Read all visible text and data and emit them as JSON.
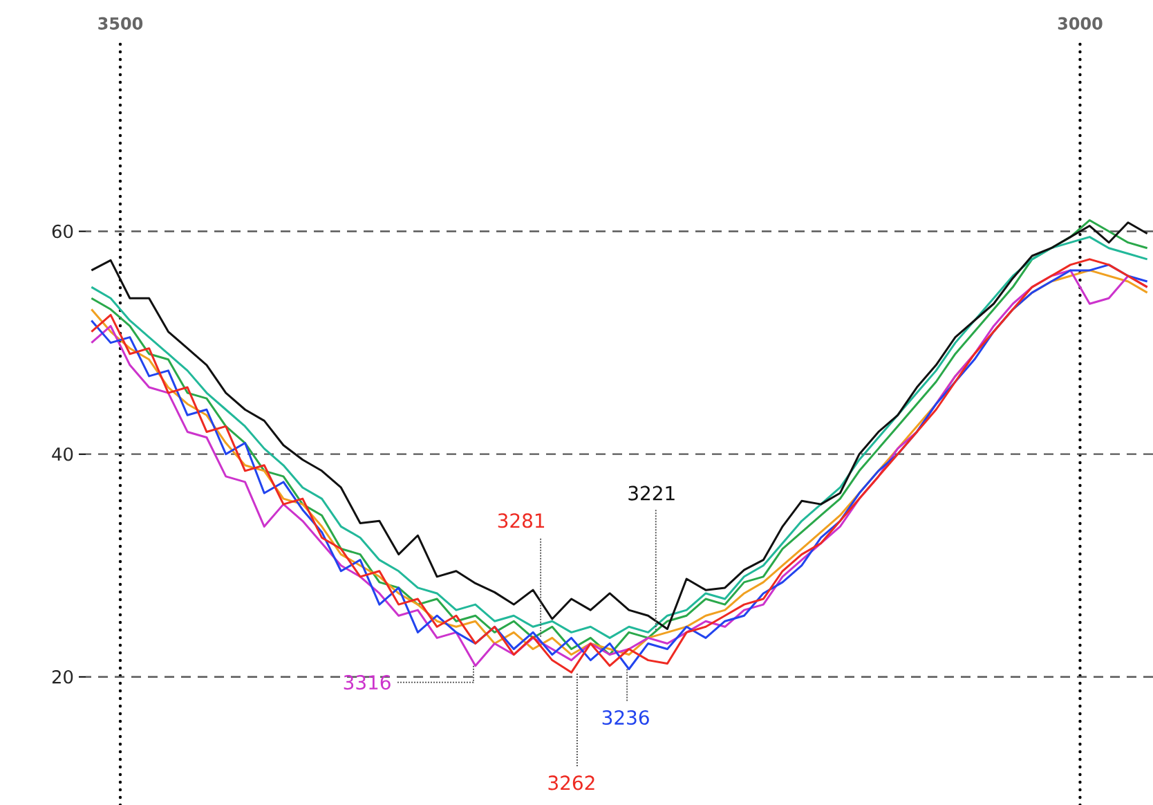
{
  "chart_data": {
    "type": "line",
    "x": [
      3515,
      3505,
      3495,
      3485,
      3475,
      3465,
      3455,
      3445,
      3435,
      3425,
      3415,
      3405,
      3395,
      3385,
      3375,
      3365,
      3355,
      3345,
      3335,
      3325,
      3315,
      3305,
      3295,
      3285,
      3275,
      3265,
      3255,
      3245,
      3235,
      3225,
      3215,
      3205,
      3195,
      3185,
      3175,
      3165,
      3155,
      3145,
      3135,
      3125,
      3115,
      3105,
      3095,
      3085,
      3075,
      3065,
      3055,
      3045,
      3035,
      3025,
      3015,
      3005,
      2995,
      2985,
      2975,
      2965
    ],
    "series": [
      {
        "color": "#2aa84a",
        "values": [
          54.0,
          53.0,
          51.5,
          49.0,
          48.5,
          45.5,
          45.0,
          42.5,
          41.0,
          38.5,
          38.0,
          35.5,
          34.5,
          31.5,
          31.0,
          28.5,
          28.0,
          26.5,
          27.0,
          25.0,
          25.5,
          24.0,
          25.0,
          23.5,
          24.5,
          22.5,
          23.5,
          22.0,
          24.0,
          23.5,
          25.0,
          25.5,
          27.0,
          26.5,
          28.5,
          29.0,
          31.5,
          33.0,
          34.5,
          36.0,
          38.5,
          40.5,
          42.5,
          44.5,
          46.5,
          49.0,
          51.0,
          53.0,
          55.0,
          57.5,
          58.5,
          59.5,
          61.0,
          60.0,
          59.0,
          58.5
        ]
      },
      {
        "color": "#22b89a",
        "values": [
          55.0,
          54.0,
          52.0,
          50.5,
          49.0,
          47.5,
          45.5,
          44.0,
          42.5,
          40.5,
          39.0,
          37.0,
          36.0,
          33.5,
          32.5,
          30.5,
          29.5,
          28.0,
          27.5,
          26.0,
          26.5,
          25.0,
          25.5,
          24.5,
          25.0,
          24.0,
          24.5,
          23.5,
          24.5,
          24.0,
          25.5,
          26.0,
          27.5,
          27.0,
          29.0,
          30.0,
          32.0,
          34.0,
          35.5,
          37.0,
          39.5,
          41.5,
          43.5,
          45.5,
          47.5,
          50.0,
          52.0,
          54.0,
          56.0,
          57.5,
          58.5,
          59.0,
          59.5,
          58.5,
          58.0,
          57.5
        ]
      },
      {
        "color": "#f0a020",
        "values": [
          53.0,
          51.0,
          49.5,
          48.5,
          46.0,
          44.5,
          43.5,
          41.0,
          39.0,
          38.5,
          36.0,
          35.5,
          33.5,
          31.0,
          30.0,
          29.0,
          27.5,
          26.5,
          25.0,
          24.5,
          25.0,
          23.0,
          24.0,
          22.5,
          23.5,
          22.0,
          23.0,
          22.5,
          22.0,
          23.5,
          24.0,
          24.5,
          25.5,
          26.0,
          27.5,
          28.5,
          30.0,
          31.5,
          33.0,
          34.5,
          36.5,
          38.5,
          40.5,
          42.5,
          44.5,
          47.0,
          49.0,
          51.0,
          53.0,
          54.5,
          55.5,
          56.0,
          56.5,
          56.0,
          55.5,
          54.5
        ]
      },
      {
        "color": "#cc33cc",
        "values": [
          50.0,
          51.5,
          48.0,
          46.0,
          45.5,
          42.0,
          41.5,
          38.0,
          37.5,
          33.5,
          35.5,
          34.0,
          32.0,
          30.0,
          29.0,
          27.5,
          25.5,
          26.0,
          23.5,
          24.0,
          21.0,
          23.0,
          22.0,
          23.5,
          22.5,
          21.5,
          23.0,
          22.0,
          22.5,
          23.5,
          23.0,
          24.0,
          25.0,
          24.5,
          26.0,
          26.5,
          29.0,
          30.5,
          32.0,
          33.5,
          36.0,
          38.0,
          40.5,
          42.0,
          44.5,
          47.0,
          49.0,
          51.5,
          53.5,
          55.0,
          56.0,
          56.5,
          53.5,
          54.0,
          56.0,
          55.0
        ]
      },
      {
        "color": "#2244ee",
        "values": [
          52.0,
          50.0,
          50.5,
          47.0,
          47.5,
          43.5,
          44.0,
          40.0,
          41.0,
          36.5,
          37.5,
          35.0,
          33.0,
          29.5,
          30.5,
          26.5,
          28.0,
          24.0,
          25.5,
          24.0,
          23.0,
          24.5,
          22.5,
          24.0,
          22.0,
          23.5,
          21.5,
          23.0,
          20.7,
          23.0,
          22.5,
          24.5,
          23.5,
          25.0,
          25.5,
          27.5,
          28.5,
          30.0,
          32.5,
          34.0,
          36.5,
          38.5,
          40.0,
          42.0,
          44.5,
          46.5,
          48.5,
          51.0,
          53.0,
          54.5,
          55.5,
          56.5,
          56.5,
          57.0,
          56.0,
          55.5
        ]
      },
      {
        "color": "#ee2a22",
        "values": [
          51.0,
          52.5,
          49.0,
          49.5,
          45.5,
          46.0,
          42.0,
          42.5,
          38.5,
          39.0,
          35.5,
          36.0,
          32.5,
          31.5,
          29.0,
          29.5,
          26.5,
          27.0,
          24.5,
          25.5,
          23.0,
          24.5,
          22.0,
          23.6,
          21.5,
          20.4,
          23.0,
          21.0,
          22.5,
          21.5,
          21.2,
          24.0,
          24.5,
          25.5,
          26.5,
          27.0,
          29.5,
          31.0,
          32.0,
          34.0,
          36.0,
          38.0,
          40.0,
          42.0,
          44.0,
          46.5,
          49.0,
          51.0,
          53.0,
          55.0,
          56.0,
          57.0,
          57.5,
          57.0,
          56.0,
          55.0
        ]
      },
      {
        "color": "#111111",
        "values": [
          56.5,
          57.4,
          54.0,
          54.0,
          51.0,
          49.5,
          48.0,
          45.5,
          44.0,
          43.0,
          40.8,
          39.5,
          38.5,
          37.0,
          33.8,
          34.0,
          31.0,
          32.7,
          29.0,
          29.5,
          28.4,
          27.6,
          26.5,
          27.8,
          25.2,
          27.0,
          26.0,
          27.5,
          26.0,
          25.5,
          24.3,
          28.8,
          27.8,
          28.0,
          29.6,
          30.5,
          33.5,
          35.8,
          35.5,
          36.5,
          40.0,
          42.0,
          43.5,
          46.0,
          48.0,
          50.5,
          52.0,
          53.5,
          55.8,
          57.8,
          58.5,
          59.5,
          60.5,
          59.0,
          60.8,
          59.8
        ]
      }
    ],
    "xlim": [
      3518,
      2962
    ],
    "xticks": [
      3500,
      3000
    ],
    "ylim": [
      8.5,
      77.3
    ],
    "yticks": [
      20,
      40,
      60
    ],
    "grid": true,
    "marker": "none",
    "annotations": [
      {
        "text": "3281",
        "x": 3281,
        "y": 23.6
      },
      {
        "text": "3221",
        "x": 3221,
        "y": 24.2
      },
      {
        "text": "3316",
        "x": 3316,
        "y": 21.0
      },
      {
        "text": "3236",
        "x": 3236,
        "y": 20.7
      },
      {
        "text": "3262",
        "x": 3262,
        "y": 20.3
      }
    ]
  }
}
